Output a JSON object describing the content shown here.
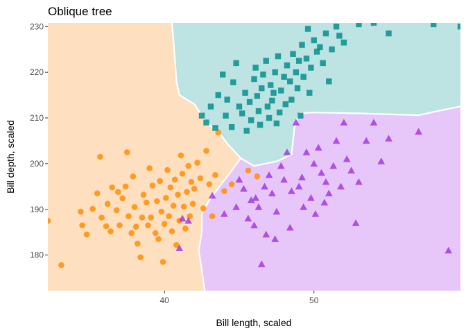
{
  "chart_data": {
    "type": "scatter",
    "title": "Oblique tree",
    "xlabel": "Bill length, scaled",
    "ylabel": "Bill depth, scaled",
    "xlim": [
      32.2,
      59.8
    ],
    "ylim": [
      172.2,
      230.8
    ],
    "x_ticks": [
      40,
      50
    ],
    "y_ticks": [
      180,
      190,
      200,
      210,
      220,
      230
    ],
    "grid": false,
    "legend": "none",
    "regions": [
      {
        "class": "orange",
        "color": "#FEDFBF"
      },
      {
        "class": "teal",
        "color": "#BEE3E3"
      },
      {
        "class": "purple",
        "color": "#E7C7FA"
      }
    ],
    "boundaries": {
      "orange_teal": [
        [
          40.5,
          230.8
        ],
        [
          40.6,
          227
        ],
        [
          40.7,
          223
        ],
        [
          40.8,
          218
        ],
        [
          41.0,
          215
        ],
        [
          42.0,
          213
        ],
        [
          42.8,
          209
        ],
        [
          43.6,
          207
        ],
        [
          44.3,
          204
        ],
        [
          45.1,
          201.2
        ]
      ],
      "orange_purple": [
        [
          45.1,
          201.2
        ],
        [
          44.5,
          198.5
        ],
        [
          43.8,
          195.5
        ],
        [
          43.0,
          192
        ],
        [
          42.5,
          189
        ],
        [
          42.5,
          185
        ],
        [
          42.3,
          181
        ],
        [
          42.7,
          172.2
        ]
      ],
      "teal_purple": [
        [
          45.1,
          201.2
        ],
        [
          46.0,
          199.5
        ],
        [
          47.5,
          200.5
        ],
        [
          48.5,
          202
        ],
        [
          48.6,
          205
        ],
        [
          48.7,
          208
        ],
        [
          49.0,
          211
        ],
        [
          50.0,
          211.2
        ],
        [
          53.0,
          211
        ],
        [
          57.0,
          210.6
        ],
        [
          59.0,
          212
        ],
        [
          59.8,
          212.5
        ]
      ]
    },
    "series": [
      {
        "name": "",
        "color": "#FF8C00",
        "marker": "circle",
        "points": [
          [
            32.2,
            187.5
          ],
          [
            33.1,
            177.8
          ],
          [
            34.4,
            189.5
          ],
          [
            34.5,
            186.5
          ],
          [
            34.8,
            184.5
          ],
          [
            35.2,
            190.1
          ],
          [
            35.5,
            193.5
          ],
          [
            35.7,
            201.5
          ],
          [
            35.8,
            188.2
          ],
          [
            36.1,
            186.3
          ],
          [
            36.2,
            191.2
          ],
          [
            36.4,
            185.2
          ],
          [
            36.5,
            194.8
          ],
          [
            36.8,
            189.8
          ],
          [
            36.9,
            193.8
          ],
          [
            37.0,
            186.5
          ],
          [
            37.2,
            192.4
          ],
          [
            37.4,
            195.0
          ],
          [
            37.5,
            202.5
          ],
          [
            37.6,
            188.5
          ],
          [
            37.8,
            184.8
          ],
          [
            37.9,
            197.2
          ],
          [
            38.0,
            190.5
          ],
          [
            38.1,
            186.2
          ],
          [
            38.2,
            182.5
          ],
          [
            38.4,
            179.5
          ],
          [
            38.5,
            188.2
          ],
          [
            38.6,
            193.2
          ],
          [
            38.8,
            191.5
          ],
          [
            38.9,
            186.5
          ],
          [
            39.0,
            199.0
          ],
          [
            39.1,
            188.2
          ],
          [
            39.2,
            195.2
          ],
          [
            39.4,
            184.8
          ],
          [
            39.5,
            191.8
          ],
          [
            39.6,
            183.5
          ],
          [
            39.7,
            196.2
          ],
          [
            39.8,
            189.5
          ],
          [
            39.9,
            178.5
          ],
          [
            40.0,
            186.8
          ],
          [
            40.1,
            192.5
          ],
          [
            40.2,
            198.6
          ],
          [
            40.3,
            188.5
          ],
          [
            40.4,
            194.8
          ],
          [
            40.5,
            185.2
          ],
          [
            40.6,
            190.8
          ],
          [
            40.7,
            196.5
          ],
          [
            40.8,
            182.2
          ],
          [
            40.9,
            193.2
          ],
          [
            41.0,
            187.5
          ],
          [
            41.1,
            201.8
          ],
          [
            41.2,
            197.8
          ],
          [
            41.3,
            190.6
          ],
          [
            41.4,
            185.8
          ],
          [
            41.5,
            193.8
          ],
          [
            41.6,
            199.5
          ],
          [
            41.7,
            188.5
          ],
          [
            41.8,
            196.0
          ],
          [
            41.9,
            191.2
          ],
          [
            42.0,
            194.5
          ],
          [
            42.2,
            200.2
          ],
          [
            42.4,
            196.8
          ],
          [
            42.6,
            190.2
          ],
          [
            42.8,
            202.8
          ],
          [
            43.0,
            195.5
          ],
          [
            43.2,
            188.5
          ],
          [
            43.4,
            197.5
          ],
          [
            43.6,
            206.8
          ],
          [
            44.0,
            194.0
          ],
          [
            44.5,
            195.5
          ],
          [
            45.6,
            198.5
          ],
          [
            46.2,
            197.2
          ]
        ]
      },
      {
        "name": "",
        "color": "#008B8B",
        "marker": "square",
        "points": [
          [
            42.5,
            210.5
          ],
          [
            42.8,
            209.0
          ],
          [
            43.1,
            212.5
          ],
          [
            43.4,
            207.8
          ],
          [
            43.6,
            215.0
          ],
          [
            43.9,
            219.5
          ],
          [
            44.1,
            210.5
          ],
          [
            44.2,
            214.0
          ],
          [
            44.5,
            208.0
          ],
          [
            44.6,
            217.8
          ],
          [
            44.8,
            222.0
          ],
          [
            45.0,
            212.5
          ],
          [
            45.2,
            211.0
          ],
          [
            45.4,
            215.5
          ],
          [
            45.5,
            207.2
          ],
          [
            45.7,
            213.5
          ],
          [
            45.8,
            209.5
          ],
          [
            46.0,
            218.5
          ],
          [
            46.1,
            221.0
          ],
          [
            46.2,
            214.8
          ],
          [
            46.3,
            211.5
          ],
          [
            46.4,
            208.5
          ],
          [
            46.5,
            216.5
          ],
          [
            46.6,
            219.5
          ],
          [
            46.8,
            222.5
          ],
          [
            46.9,
            212.5
          ],
          [
            47.0,
            210.0
          ],
          [
            47.1,
            217.2
          ],
          [
            47.2,
            213.8
          ],
          [
            47.3,
            215.5
          ],
          [
            47.4,
            220.0
          ],
          [
            47.5,
            208.8
          ],
          [
            47.6,
            223.5
          ],
          [
            47.7,
            211.2
          ],
          [
            47.8,
            216.0
          ],
          [
            48.0,
            219.0
          ],
          [
            48.1,
            213.0
          ],
          [
            48.2,
            221.5
          ],
          [
            48.4,
            218.0
          ],
          [
            48.5,
            214.0
          ],
          [
            48.6,
            224.0
          ],
          [
            48.8,
            220.0
          ],
          [
            48.9,
            216.5
          ],
          [
            49.0,
            222.5
          ],
          [
            49.1,
            210.5
          ],
          [
            49.2,
            226.0
          ],
          [
            49.3,
            219.0
          ],
          [
            49.5,
            223.0
          ],
          [
            49.6,
            229.5
          ],
          [
            49.7,
            215.5
          ],
          [
            49.8,
            221.0
          ],
          [
            50.0,
            227.0
          ],
          [
            50.2,
            224.5
          ],
          [
            50.4,
            225.5
          ],
          [
            50.6,
            222.0
          ],
          [
            50.8,
            228.5
          ],
          [
            51.0,
            218.0
          ],
          [
            51.2,
            225.0
          ],
          [
            51.5,
            230.0
          ],
          [
            51.7,
            228.0
          ],
          [
            52.0,
            226.5
          ],
          [
            53.0,
            230.5
          ],
          [
            54.0,
            230.8
          ],
          [
            55.0,
            228.5
          ],
          [
            58.0,
            230.5
          ],
          [
            59.8,
            230.0
          ]
        ]
      },
      {
        "name": "",
        "color": "#A134E0",
        "marker": "triangle",
        "points": [
          [
            41.0,
            181.5
          ],
          [
            41.2,
            188.0
          ],
          [
            41.6,
            187.5
          ],
          [
            43.2,
            193.0
          ],
          [
            44.0,
            189.0
          ],
          [
            44.8,
            190.5
          ],
          [
            45.0,
            196.5
          ],
          [
            45.3,
            194.5
          ],
          [
            45.6,
            188.0
          ],
          [
            45.8,
            192.0
          ],
          [
            46.1,
            192.5
          ],
          [
            46.3,
            190.5
          ],
          [
            46.5,
            178.0
          ],
          [
            46.7,
            195.0
          ],
          [
            47.0,
            197.5
          ],
          [
            47.2,
            193.5
          ],
          [
            47.5,
            189.5
          ],
          [
            47.8,
            199.5
          ],
          [
            48.0,
            196.5
          ],
          [
            48.2,
            202.5
          ],
          [
            48.5,
            194.0
          ],
          [
            48.8,
            209.0
          ],
          [
            49.0,
            195.0
          ],
          [
            49.2,
            197.0
          ],
          [
            49.5,
            202.5
          ],
          [
            49.8,
            192.5
          ],
          [
            50.0,
            200.0
          ],
          [
            50.3,
            203.5
          ],
          [
            50.5,
            198.0
          ],
          [
            50.8,
            196.0
          ],
          [
            51.0,
            193.5
          ],
          [
            51.3,
            199.5
          ],
          [
            51.5,
            205.0
          ],
          [
            51.8,
            195.0
          ],
          [
            52.0,
            209.0
          ],
          [
            52.2,
            201.0
          ],
          [
            52.5,
            198.5
          ],
          [
            52.8,
            187.0
          ],
          [
            53.0,
            196.0
          ],
          [
            53.5,
            205.0
          ],
          [
            54.0,
            209.0
          ],
          [
            54.5,
            200.5
          ],
          [
            55.0,
            205.5
          ],
          [
            57.0,
            207.0
          ],
          [
            59.0,
            181.0
          ],
          [
            46.0,
            186.5
          ],
          [
            46.8,
            184.5
          ],
          [
            47.4,
            183.5
          ],
          [
            48.4,
            186.0
          ],
          [
            49.3,
            190.5
          ],
          [
            50.1,
            189.0
          ],
          [
            50.7,
            191.5
          ]
        ]
      }
    ]
  }
}
